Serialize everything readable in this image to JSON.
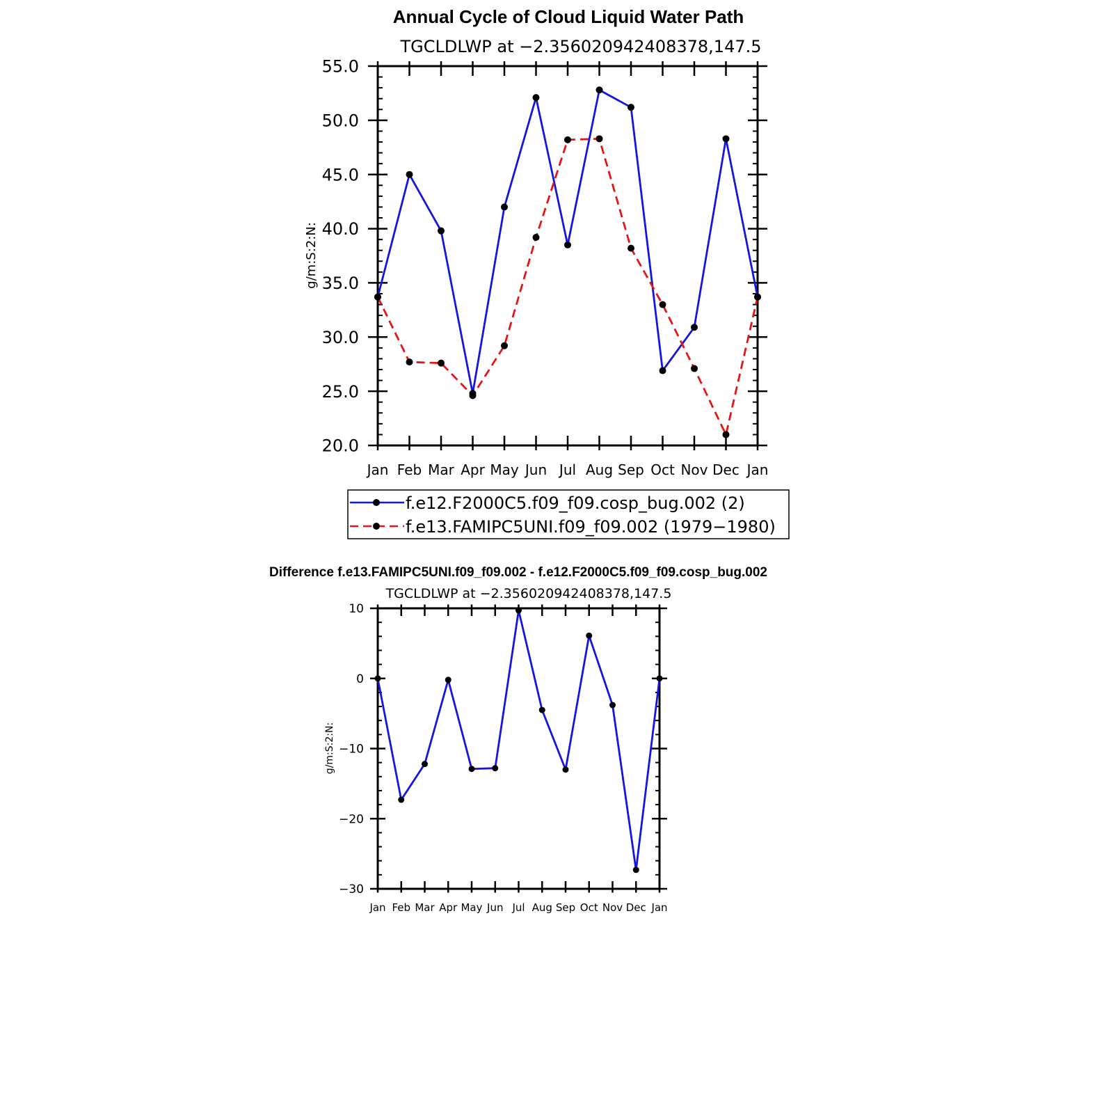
{
  "chart_data": [
    {
      "type": "line",
      "title": "Annual Cycle of Cloud Liquid Water Path",
      "subtitle": "TGCLDLWP at −2.356020942408378,147.5",
      "xlabel": "",
      "ylabel": "g/m:S:2:N:",
      "categories": [
        "Jan",
        "Feb",
        "Mar",
        "Apr",
        "May",
        "Jun",
        "Jul",
        "Aug",
        "Sep",
        "Oct",
        "Nov",
        "Dec",
        "Jan"
      ],
      "ylim": [
        20,
        55
      ],
      "yticks": [
        "20.0",
        "25.0",
        "30.0",
        "35.0",
        "40.0",
        "45.0",
        "50.0",
        "55.0"
      ],
      "ytick_values": [
        20,
        25,
        30,
        35,
        40,
        45,
        50,
        55
      ],
      "grid": false,
      "legend_position": "bottom",
      "series": [
        {
          "name": "f.e12.F2000C5.f09_f09.cosp_bug.002 (2)",
          "color": "#1414e6",
          "style": "solid",
          "values": [
            33.7,
            45.0,
            39.8,
            24.8,
            42.0,
            52.1,
            38.5,
            52.8,
            51.2,
            26.9,
            30.9,
            48.3,
            33.7
          ]
        },
        {
          "name": "f.e13.FAMIPC5UNI.f09_f09.002 (1979−1980)",
          "color": "#e61414",
          "style": "dashed",
          "values": [
            33.7,
            27.7,
            27.6,
            24.6,
            29.2,
            39.2,
            48.2,
            48.3,
            38.2,
            33.0,
            27.1,
            21.0,
            33.7
          ]
        }
      ]
    },
    {
      "type": "line",
      "title": "Difference f.e13.FAMIPC5UNI.f09_f09.002 - f.e12.F2000C5.f09_f09.cosp_bug.002",
      "subtitle": "TGCLDLWP at −2.356020942408378,147.5",
      "xlabel": "",
      "ylabel": "g/m:S:2:N:",
      "categories": [
        "Jan",
        "Feb",
        "Mar",
        "Apr",
        "May",
        "Jun",
        "Jul",
        "Aug",
        "Sep",
        "Oct",
        "Nov",
        "Dec",
        "Jan"
      ],
      "ylim": [
        -30,
        10
      ],
      "yticks": [
        "−30",
        "−20",
        "−10",
        "0",
        "10"
      ],
      "ytick_values": [
        -30,
        -20,
        -10,
        0,
        10
      ],
      "grid": false,
      "series": [
        {
          "color": "#1414e6",
          "style": "solid",
          "values": [
            0.0,
            -17.3,
            -12.2,
            -0.2,
            -12.9,
            -12.8,
            9.7,
            -4.5,
            -13.0,
            6.1,
            -3.8,
            -27.3,
            0.0
          ]
        }
      ]
    }
  ]
}
